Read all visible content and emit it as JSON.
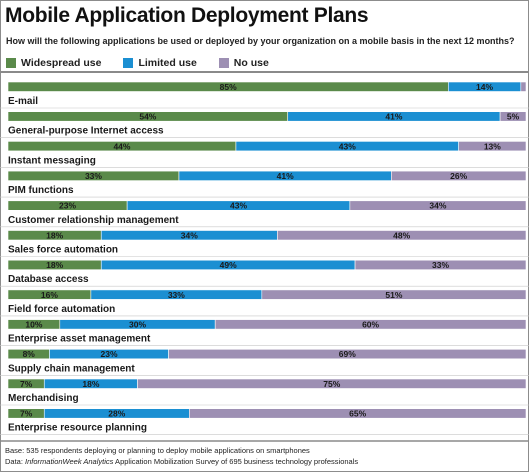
{
  "chart_data": {
    "type": "bar",
    "stacked": true,
    "orientation": "horizontal",
    "title": "Mobile Application Deployment Plans",
    "subtitle": "How will the following applications be used or deployed by your organization on a mobile basis in the next 12 months?",
    "categories": [
      "E-mail",
      "General-purpose Internet access",
      "Instant messaging",
      "PIM functions",
      "Customer relationship management",
      "Sales force automation",
      "Database access",
      "Field force automation",
      "Enterprise asset management",
      "Supply chain management",
      "Merchandising",
      "Enterprise resource planning"
    ],
    "series": [
      {
        "name": "Widespread use",
        "color": "#5a8a4a",
        "values": [
          85,
          54,
          44,
          33,
          23,
          18,
          18,
          16,
          10,
          8,
          7,
          7
        ]
      },
      {
        "name": "Limited use",
        "color": "#1b8fd2",
        "values": [
          14,
          41,
          43,
          41,
          43,
          34,
          49,
          33,
          30,
          23,
          18,
          28
        ]
      },
      {
        "name": "No use",
        "color": "#9d8fb3",
        "values": [
          1,
          5,
          13,
          26,
          34,
          48,
          33,
          51,
          60,
          69,
          75,
          65
        ]
      }
    ],
    "xlim": [
      0,
      100
    ],
    "unit": "%",
    "legend_position": "top-left"
  },
  "footer": {
    "base": "Base: 535 respondents deploying or planning to deploy mobile applications on smartphones",
    "data_prefix": "Data: ",
    "data_source": "InformationWeek Analytics",
    "data_suffix": " Application Mobilization Survey of 695 business technology professionals"
  }
}
